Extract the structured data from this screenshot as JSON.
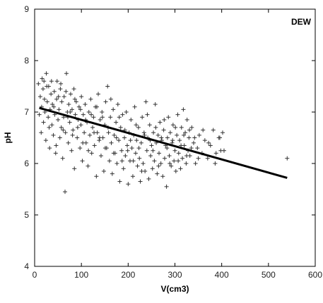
{
  "chart_data": {
    "type": "scatter",
    "title": "",
    "annotation": "DEW",
    "xlabel": "V(cm3)",
    "ylabel": "pH",
    "xlim": [
      0,
      600
    ],
    "ylim": [
      4,
      9
    ],
    "xticks": [
      0,
      100,
      200,
      300,
      400,
      500,
      600
    ],
    "yticks": [
      4,
      5,
      6,
      7,
      8,
      9
    ],
    "grid": false,
    "series": [
      {
        "kind": "points",
        "marker": "+",
        "points": [
          [
            8,
            7.55
          ],
          [
            10,
            6.95
          ],
          [
            12,
            7.3
          ],
          [
            14,
            6.6
          ],
          [
            15,
            7.1
          ],
          [
            18,
            7.45
          ],
          [
            19,
            6.8
          ],
          [
            20,
            7.6
          ],
          [
            22,
            7.0
          ],
          [
            24,
            6.45
          ],
          [
            25,
            7.75
          ],
          [
            27,
            7.2
          ],
          [
            29,
            6.9
          ],
          [
            30,
            7.5
          ],
          [
            32,
            6.3
          ],
          [
            33,
            7.05
          ],
          [
            35,
            7.35
          ],
          [
            37,
            6.75
          ],
          [
            38,
            7.15
          ],
          [
            40,
            6.55
          ],
          [
            42,
            7.4
          ],
          [
            43,
            6.95
          ],
          [
            45,
            6.2
          ],
          [
            47,
            7.25
          ],
          [
            48,
            7.6
          ],
          [
            50,
            6.85
          ],
          [
            52,
            7.05
          ],
          [
            54,
            6.5
          ],
          [
            55,
            7.45
          ],
          [
            57,
            6.7
          ],
          [
            58,
            7.2
          ],
          [
            60,
            6.1
          ],
          [
            62,
            6.9
          ],
          [
            63,
            7.3
          ],
          [
            65,
            5.45
          ],
          [
            66,
            6.6
          ],
          [
            68,
            7.75
          ],
          [
            70,
            7.0
          ],
          [
            72,
            6.4
          ],
          [
            73,
            7.15
          ],
          [
            75,
            6.8
          ],
          [
            77,
            7.35
          ],
          [
            79,
            6.25
          ],
          [
            80,
            7.05
          ],
          [
            82,
            6.65
          ],
          [
            84,
            7.45
          ],
          [
            85,
            5.9
          ],
          [
            87,
            6.95
          ],
          [
            89,
            7.2
          ],
          [
            91,
            6.5
          ],
          [
            93,
            6.85
          ],
          [
            95,
            7.1
          ],
          [
            97,
            6.3
          ],
          [
            99,
            6.75
          ],
          [
            100,
            7.3
          ],
          [
            102,
            6.05
          ],
          [
            104,
            6.95
          ],
          [
            106,
            6.6
          ],
          [
            108,
            7.15
          ],
          [
            110,
            6.4
          ],
          [
            112,
            6.8
          ],
          [
            114,
            5.95
          ],
          [
            116,
            7.0
          ],
          [
            118,
            6.55
          ],
          [
            120,
            7.25
          ],
          [
            122,
            6.2
          ],
          [
            124,
            6.7
          ],
          [
            126,
            6.9
          ],
          [
            128,
            6.35
          ],
          [
            130,
            7.1
          ],
          [
            132,
            5.75
          ],
          [
            134,
            6.6
          ],
          [
            136,
            7.35
          ],
          [
            138,
            6.45
          ],
          [
            140,
            6.85
          ],
          [
            142,
            6.15
          ],
          [
            144,
            7.0
          ],
          [
            146,
            6.5
          ],
          [
            148,
            5.85
          ],
          [
            150,
            6.75
          ],
          [
            152,
            7.2
          ],
          [
            154,
            6.3
          ],
          [
            156,
            7.5
          ],
          [
            158,
            6.6
          ],
          [
            160,
            6.05
          ],
          [
            162,
            6.9
          ],
          [
            164,
            6.4
          ],
          [
            166,
            5.8
          ],
          [
            168,
            7.05
          ],
          [
            170,
            6.55
          ],
          [
            172,
            6.2
          ],
          [
            174,
            6.8
          ],
          [
            176,
            6.0
          ],
          [
            178,
            7.15
          ],
          [
            180,
            6.45
          ],
          [
            182,
            5.65
          ],
          [
            184,
            6.7
          ],
          [
            186,
            6.25
          ],
          [
            188,
            6.95
          ],
          [
            190,
            5.9
          ],
          [
            192,
            6.5
          ],
          [
            194,
            6.15
          ],
          [
            196,
            7.0
          ],
          [
            198,
            6.35
          ],
          [
            200,
            5.6
          ],
          [
            202,
            6.6
          ],
          [
            204,
            6.05
          ],
          [
            206,
            6.85
          ],
          [
            208,
            6.3
          ],
          [
            210,
            5.75
          ],
          [
            212,
            6.55
          ],
          [
            214,
            7.1
          ],
          [
            216,
            6.2
          ],
          [
            218,
            6.45
          ],
          [
            220,
            5.95
          ],
          [
            222,
            6.7
          ],
          [
            224,
            6.1
          ],
          [
            226,
            5.65
          ],
          [
            228,
            6.4
          ],
          [
            230,
            6.9
          ],
          [
            232,
            6.0
          ],
          [
            234,
            6.6
          ],
          [
            236,
            5.85
          ],
          [
            238,
            7.2
          ],
          [
            240,
            6.25
          ],
          [
            242,
            6.5
          ],
          [
            244,
            5.7
          ],
          [
            246,
            6.75
          ],
          [
            248,
            6.15
          ],
          [
            250,
            6.35
          ],
          [
            252,
            5.9
          ],
          [
            254,
            6.6
          ],
          [
            256,
            6.05
          ],
          [
            258,
            7.15
          ],
          [
            260,
            6.4
          ],
          [
            262,
            5.8
          ],
          [
            264,
            6.55
          ],
          [
            266,
            6.2
          ],
          [
            268,
            6.8
          ],
          [
            270,
            6.0
          ],
          [
            272,
            6.45
          ],
          [
            274,
            5.75
          ],
          [
            276,
            6.65
          ],
          [
            278,
            6.1
          ],
          [
            280,
            6.35
          ],
          [
            282,
            5.55
          ],
          [
            284,
            6.5
          ],
          [
            286,
            6.9
          ],
          [
            288,
            6.15
          ],
          [
            290,
            6.6
          ],
          [
            292,
            5.95
          ],
          [
            294,
            6.4
          ],
          [
            296,
            6.75
          ],
          [
            298,
            6.05
          ],
          [
            300,
            6.25
          ],
          [
            302,
            5.85
          ],
          [
            304,
            6.55
          ],
          [
            306,
            6.95
          ],
          [
            308,
            6.2
          ],
          [
            310,
            6.45
          ],
          [
            312,
            5.9
          ],
          [
            314,
            6.7
          ],
          [
            316,
            6.1
          ],
          [
            318,
            7.05
          ],
          [
            320,
            6.35
          ],
          [
            322,
            6.6
          ],
          [
            324,
            6.0
          ],
          [
            326,
            6.85
          ],
          [
            328,
            6.25
          ],
          [
            330,
            6.5
          ],
          [
            332,
            6.15
          ],
          [
            336,
            6.7
          ],
          [
            340,
            6.4
          ],
          [
            344,
            6.0
          ],
          [
            348,
            6.3
          ],
          [
            352,
            6.55
          ],
          [
            358,
            6.2
          ],
          [
            364,
            6.45
          ],
          [
            370,
            6.1
          ],
          [
            376,
            6.35
          ],
          [
            382,
            6.65
          ],
          [
            388,
            6.2
          ],
          [
            394,
            6.5
          ],
          [
            398,
            6.25
          ],
          [
            402,
            6.6
          ],
          [
            540,
            6.1
          ],
          [
            16,
            7.65
          ],
          [
            21,
            7.25
          ],
          [
            26,
            7.5
          ],
          [
            31,
            6.7
          ],
          [
            36,
            7.6
          ],
          [
            41,
            7.1
          ],
          [
            46,
            6.35
          ],
          [
            51,
            7.3
          ],
          [
            56,
            7.55
          ],
          [
            61,
            6.65
          ],
          [
            67,
            7.4
          ],
          [
            71,
            6.9
          ],
          [
            76,
            7.0
          ],
          [
            81,
            6.55
          ],
          [
            86,
            7.25
          ],
          [
            92,
            6.7
          ],
          [
            98,
            7.05
          ],
          [
            103,
            6.4
          ],
          [
            109,
            6.85
          ],
          [
            115,
            6.25
          ],
          [
            121,
            6.95
          ],
          [
            127,
            6.6
          ],
          [
            133,
            7.1
          ],
          [
            139,
            6.5
          ],
          [
            145,
            6.9
          ],
          [
            151,
            6.3
          ],
          [
            157,
            6.7
          ],
          [
            163,
            7.25
          ],
          [
            169,
            6.2
          ],
          [
            175,
            6.5
          ],
          [
            181,
            6.9
          ],
          [
            187,
            6.05
          ],
          [
            193,
            6.65
          ],
          [
            199,
            6.25
          ],
          [
            205,
            6.45
          ],
          [
            211,
            6.05
          ],
          [
            217,
            6.75
          ],
          [
            223,
            6.3
          ],
          [
            229,
            5.85
          ],
          [
            235,
            6.55
          ],
          [
            241,
            6.95
          ],
          [
            247,
            6.45
          ],
          [
            253,
            6.25
          ],
          [
            259,
            6.7
          ],
          [
            265,
            5.95
          ],
          [
            271,
            6.5
          ],
          [
            277,
            6.85
          ],
          [
            283,
            6.3
          ],
          [
            289,
            6.0
          ],
          [
            295,
            6.45
          ],
          [
            301,
            6.7
          ],
          [
            307,
            6.05
          ],
          [
            313,
            6.35
          ],
          [
            319,
            6.55
          ],
          [
            325,
            6.15
          ],
          [
            331,
            6.65
          ],
          [
            335,
            6.3
          ],
          [
            342,
            6.5
          ],
          [
            350,
            6.1
          ],
          [
            360,
            6.65
          ],
          [
            372,
            6.4
          ],
          [
            386,
            6.0
          ],
          [
            396,
            6.5
          ],
          [
            405,
            6.25
          ]
        ]
      },
      {
        "kind": "trendline",
        "points": [
          [
            10,
            7.08
          ],
          [
            540,
            5.72
          ]
        ]
      }
    ]
  }
}
